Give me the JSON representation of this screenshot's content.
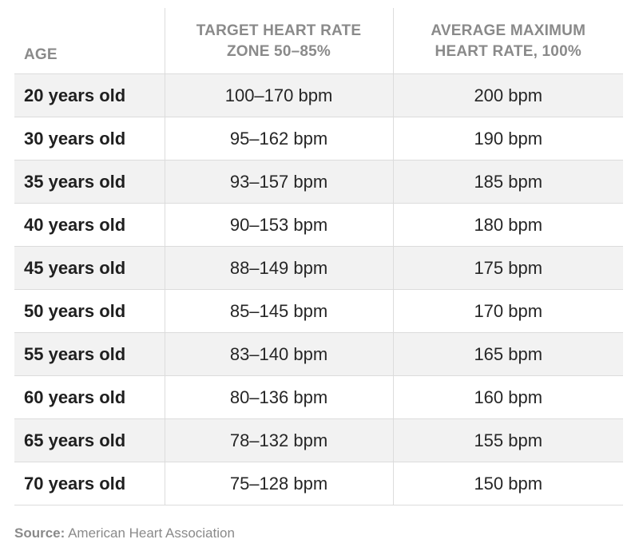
{
  "table": {
    "headers": {
      "age": "AGE",
      "target_line1": "TARGET HEART RATE",
      "target_line2": "ZONE 50–85%",
      "max_line1": "AVERAGE MAXIMUM",
      "max_line2": "HEART RATE, 100%"
    },
    "rows": [
      {
        "age": "20 years old",
        "target": "100–170 bpm",
        "max": "200 bpm"
      },
      {
        "age": "30 years old",
        "target": "95–162 bpm",
        "max": "190 bpm"
      },
      {
        "age": "35 years old",
        "target": "93–157 bpm",
        "max": "185 bpm"
      },
      {
        "age": "40 years old",
        "target": "90–153 bpm",
        "max": "180 bpm"
      },
      {
        "age": "45 years old",
        "target": "88–149 bpm",
        "max": "175 bpm"
      },
      {
        "age": "50 years old",
        "target": "85–145 bpm",
        "max": "170 bpm"
      },
      {
        "age": "55 years old",
        "target": "83–140 bpm",
        "max": "165 bpm"
      },
      {
        "age": "60 years old",
        "target": "80–136 bpm",
        "max": "160 bpm"
      },
      {
        "age": "65 years old",
        "target": "78–132 bpm",
        "max": "155 bpm"
      },
      {
        "age": "70 years old",
        "target": "75–128 bpm",
        "max": "150 bpm"
      }
    ]
  },
  "source": {
    "label": "Source:",
    "text": "American Heart Association"
  },
  "colors": {
    "row_stripe": "#f2f2f2",
    "header_text": "#8a8a8a",
    "divider": "#dcdcdc"
  }
}
